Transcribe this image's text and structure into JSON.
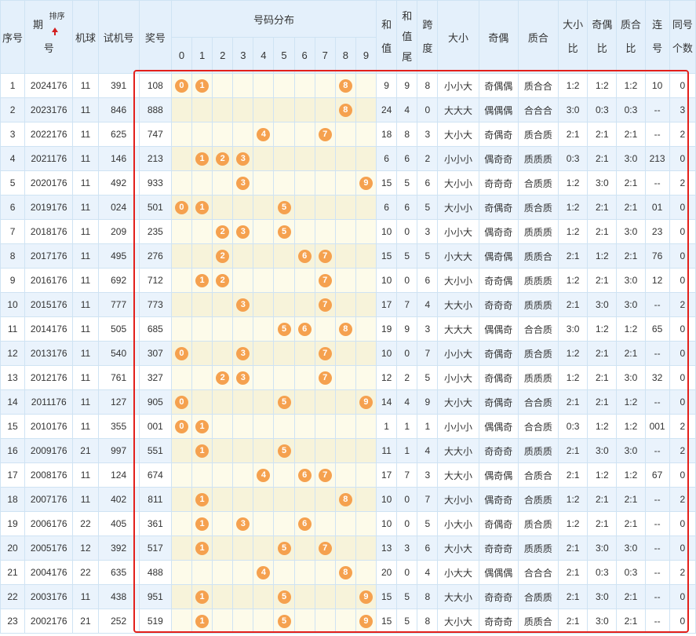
{
  "headers": {
    "seq": "序号",
    "period_a": "期",
    "period_b": "号",
    "sort": "排序",
    "machine": "机球",
    "trial": "试机号",
    "prize": "奖号",
    "distribution": "号码分布",
    "digits": [
      "0",
      "1",
      "2",
      "3",
      "4",
      "5",
      "6",
      "7",
      "8",
      "9"
    ],
    "sum_a": "和",
    "sum_b": "值",
    "sumtail_a": "和",
    "sumtail_b": "值",
    "sumtail_c": "尾",
    "span_a": "跨",
    "span_b": "度",
    "size": "大小",
    "parity": "奇偶",
    "prime": "质合",
    "size_ratio_a": "大小",
    "size_ratio_b": "比",
    "parity_ratio_a": "奇偶",
    "parity_ratio_b": "比",
    "prime_ratio_a": "质合",
    "prime_ratio_b": "比",
    "consec_a": "连",
    "consec_b": "号",
    "same_a": "同号",
    "same_b": "个数"
  },
  "highlight_color": "#e3201b",
  "ball_color": "#f5a14f",
  "rows": [
    {
      "seq": "1",
      "period": "2024176",
      "machine": "11",
      "trial": "391",
      "prize": "108",
      "balls": [
        "0",
        "1",
        "8"
      ],
      "sum": "9",
      "tail": "9",
      "span": "8",
      "size": "小小大",
      "parity": "奇偶偶",
      "prime": "质合合",
      "sizeRatio": "1:2",
      "parityRatio": "1:2",
      "primeRatio": "1:2",
      "consec": "10",
      "same": "0"
    },
    {
      "seq": "2",
      "period": "2023176",
      "machine": "11",
      "trial": "846",
      "prize": "888",
      "balls": [
        "8"
      ],
      "sum": "24",
      "tail": "4",
      "span": "0",
      "size": "大大大",
      "parity": "偶偶偶",
      "prime": "合合合",
      "sizeRatio": "3:0",
      "parityRatio": "0:3",
      "primeRatio": "0:3",
      "consec": "--",
      "same": "3"
    },
    {
      "seq": "3",
      "period": "2022176",
      "machine": "11",
      "trial": "625",
      "prize": "747",
      "balls": [
        "4",
        "7"
      ],
      "sum": "18",
      "tail": "8",
      "span": "3",
      "size": "大小大",
      "parity": "奇偶奇",
      "prime": "质合质",
      "sizeRatio": "2:1",
      "parityRatio": "2:1",
      "primeRatio": "2:1",
      "consec": "--",
      "same": "2"
    },
    {
      "seq": "4",
      "period": "2021176",
      "machine": "11",
      "trial": "146",
      "prize": "213",
      "balls": [
        "1",
        "2",
        "3"
      ],
      "sum": "6",
      "tail": "6",
      "span": "2",
      "size": "小小小",
      "parity": "偶奇奇",
      "prime": "质质质",
      "sizeRatio": "0:3",
      "parityRatio": "2:1",
      "primeRatio": "3:0",
      "consec": "213",
      "same": "0"
    },
    {
      "seq": "5",
      "period": "2020176",
      "machine": "11",
      "trial": "492",
      "prize": "933",
      "balls": [
        "3",
        "9"
      ],
      "sum": "15",
      "tail": "5",
      "span": "6",
      "size": "大小小",
      "parity": "奇奇奇",
      "prime": "合质质",
      "sizeRatio": "1:2",
      "parityRatio": "3:0",
      "primeRatio": "2:1",
      "consec": "--",
      "same": "2"
    },
    {
      "seq": "6",
      "period": "2019176",
      "machine": "11",
      "trial": "024",
      "prize": "501",
      "balls": [
        "0",
        "1",
        "5"
      ],
      "sum": "6",
      "tail": "6",
      "span": "5",
      "size": "大小小",
      "parity": "奇偶奇",
      "prime": "质合质",
      "sizeRatio": "1:2",
      "parityRatio": "2:1",
      "primeRatio": "2:1",
      "consec": "01",
      "same": "0"
    },
    {
      "seq": "7",
      "period": "2018176",
      "machine": "11",
      "trial": "209",
      "prize": "235",
      "balls": [
        "2",
        "3",
        "5"
      ],
      "sum": "10",
      "tail": "0",
      "span": "3",
      "size": "小小大",
      "parity": "偶奇奇",
      "prime": "质质质",
      "sizeRatio": "1:2",
      "parityRatio": "2:1",
      "primeRatio": "3:0",
      "consec": "23",
      "same": "0"
    },
    {
      "seq": "8",
      "period": "2017176",
      "machine": "11",
      "trial": "495",
      "prize": "276",
      "balls": [
        "2",
        "6",
        "7"
      ],
      "sum": "15",
      "tail": "5",
      "span": "5",
      "size": "小大大",
      "parity": "偶奇偶",
      "prime": "质质合",
      "sizeRatio": "2:1",
      "parityRatio": "1:2",
      "primeRatio": "2:1",
      "consec": "76",
      "same": "0"
    },
    {
      "seq": "9",
      "period": "2016176",
      "machine": "11",
      "trial": "692",
      "prize": "712",
      "balls": [
        "1",
        "2",
        "7"
      ],
      "sum": "10",
      "tail": "0",
      "span": "6",
      "size": "大小小",
      "parity": "奇奇偶",
      "prime": "质质质",
      "sizeRatio": "1:2",
      "parityRatio": "2:1",
      "primeRatio": "3:0",
      "consec": "12",
      "same": "0"
    },
    {
      "seq": "10",
      "period": "2015176",
      "machine": "11",
      "trial": "777",
      "prize": "773",
      "balls": [
        "3",
        "7"
      ],
      "sum": "17",
      "tail": "7",
      "span": "4",
      "size": "大大小",
      "parity": "奇奇奇",
      "prime": "质质质",
      "sizeRatio": "2:1",
      "parityRatio": "3:0",
      "primeRatio": "3:0",
      "consec": "--",
      "same": "2"
    },
    {
      "seq": "11",
      "period": "2014176",
      "machine": "11",
      "trial": "505",
      "prize": "685",
      "balls": [
        "5",
        "6",
        "8"
      ],
      "sum": "19",
      "tail": "9",
      "span": "3",
      "size": "大大大",
      "parity": "偶偶奇",
      "prime": "合合质",
      "sizeRatio": "3:0",
      "parityRatio": "1:2",
      "primeRatio": "1:2",
      "consec": "65",
      "same": "0"
    },
    {
      "seq": "12",
      "period": "2013176",
      "machine": "11",
      "trial": "540",
      "prize": "307",
      "balls": [
        "0",
        "3",
        "7"
      ],
      "sum": "10",
      "tail": "0",
      "span": "7",
      "size": "小小大",
      "parity": "奇偶奇",
      "prime": "质合质",
      "sizeRatio": "1:2",
      "parityRatio": "2:1",
      "primeRatio": "2:1",
      "consec": "--",
      "same": "0"
    },
    {
      "seq": "13",
      "period": "2012176",
      "machine": "11",
      "trial": "761",
      "prize": "327",
      "balls": [
        "2",
        "3",
        "7"
      ],
      "sum": "12",
      "tail": "2",
      "span": "5",
      "size": "小小大",
      "parity": "奇偶奇",
      "prime": "质质质",
      "sizeRatio": "1:2",
      "parityRatio": "2:1",
      "primeRatio": "3:0",
      "consec": "32",
      "same": "0"
    },
    {
      "seq": "14",
      "period": "2011176",
      "machine": "11",
      "trial": "127",
      "prize": "905",
      "balls": [
        "0",
        "5",
        "9"
      ],
      "sum": "14",
      "tail": "4",
      "span": "9",
      "size": "大小大",
      "parity": "奇偶奇",
      "prime": "合合质",
      "sizeRatio": "2:1",
      "parityRatio": "2:1",
      "primeRatio": "1:2",
      "consec": "--",
      "same": "0"
    },
    {
      "seq": "15",
      "period": "2010176",
      "machine": "11",
      "trial": "355",
      "prize": "001",
      "balls": [
        "0",
        "1"
      ],
      "sum": "1",
      "tail": "1",
      "span": "1",
      "size": "小小小",
      "parity": "偶偶奇",
      "prime": "合合质",
      "sizeRatio": "0:3",
      "parityRatio": "1:2",
      "primeRatio": "1:2",
      "consec": "001",
      "same": "2"
    },
    {
      "seq": "16",
      "period": "2009176",
      "machine": "21",
      "trial": "997",
      "prize": "551",
      "balls": [
        "1",
        "5"
      ],
      "sum": "11",
      "tail": "1",
      "span": "4",
      "size": "大大小",
      "parity": "奇奇奇",
      "prime": "质质质",
      "sizeRatio": "2:1",
      "parityRatio": "3:0",
      "primeRatio": "3:0",
      "consec": "--",
      "same": "2"
    },
    {
      "seq": "17",
      "period": "2008176",
      "machine": "11",
      "trial": "124",
      "prize": "674",
      "balls": [
        "4",
        "6",
        "7"
      ],
      "sum": "17",
      "tail": "7",
      "span": "3",
      "size": "大大小",
      "parity": "偶奇偶",
      "prime": "合质合",
      "sizeRatio": "2:1",
      "parityRatio": "1:2",
      "primeRatio": "1:2",
      "consec": "67",
      "same": "0"
    },
    {
      "seq": "18",
      "period": "2007176",
      "machine": "11",
      "trial": "402",
      "prize": "811",
      "balls": [
        "1",
        "8"
      ],
      "sum": "10",
      "tail": "0",
      "span": "7",
      "size": "大小小",
      "parity": "偶奇奇",
      "prime": "合质质",
      "sizeRatio": "1:2",
      "parityRatio": "2:1",
      "primeRatio": "2:1",
      "consec": "--",
      "same": "2"
    },
    {
      "seq": "19",
      "period": "2006176",
      "machine": "22",
      "trial": "405",
      "prize": "361",
      "balls": [
        "1",
        "3",
        "6"
      ],
      "sum": "10",
      "tail": "0",
      "span": "5",
      "size": "小大小",
      "parity": "奇偶奇",
      "prime": "质合质",
      "sizeRatio": "1:2",
      "parityRatio": "2:1",
      "primeRatio": "2:1",
      "consec": "--",
      "same": "0"
    },
    {
      "seq": "20",
      "period": "2005176",
      "machine": "12",
      "trial": "392",
      "prize": "517",
      "balls": [
        "1",
        "5",
        "7"
      ],
      "sum": "13",
      "tail": "3",
      "span": "6",
      "size": "大小大",
      "parity": "奇奇奇",
      "prime": "质质质",
      "sizeRatio": "2:1",
      "parityRatio": "3:0",
      "primeRatio": "3:0",
      "consec": "--",
      "same": "0"
    },
    {
      "seq": "21",
      "period": "2004176",
      "machine": "22",
      "trial": "635",
      "prize": "488",
      "balls": [
        "4",
        "8"
      ],
      "sum": "20",
      "tail": "0",
      "span": "4",
      "size": "小大大",
      "parity": "偶偶偶",
      "prime": "合合合",
      "sizeRatio": "2:1",
      "parityRatio": "0:3",
      "primeRatio": "0:3",
      "consec": "--",
      "same": "2"
    },
    {
      "seq": "22",
      "period": "2003176",
      "machine": "11",
      "trial": "438",
      "prize": "951",
      "balls": [
        "1",
        "5",
        "9"
      ],
      "sum": "15",
      "tail": "5",
      "span": "8",
      "size": "大大小",
      "parity": "奇奇奇",
      "prime": "合质质",
      "sizeRatio": "2:1",
      "parityRatio": "3:0",
      "primeRatio": "2:1",
      "consec": "--",
      "same": "0"
    },
    {
      "seq": "23",
      "period": "2002176",
      "machine": "21",
      "trial": "252",
      "prize": "519",
      "balls": [
        "1",
        "5",
        "9"
      ],
      "sum": "15",
      "tail": "5",
      "span": "8",
      "size": "大小大",
      "parity": "奇奇奇",
      "prime": "质质合",
      "sizeRatio": "2:1",
      "parityRatio": "3:0",
      "primeRatio": "2:1",
      "consec": "--",
      "same": "0"
    }
  ]
}
